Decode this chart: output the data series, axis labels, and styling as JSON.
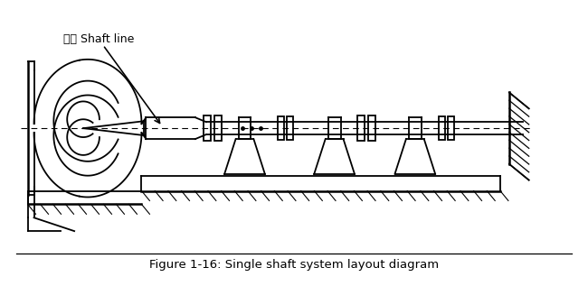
{
  "title": "Figure 1-16: Single shaft system layout diagram",
  "label_chinese": "轴线 Shaft line",
  "bg_color": "#ffffff",
  "line_color": "#000000",
  "fig_width": 6.5,
  "fig_height": 3.17,
  "dpi": 100
}
